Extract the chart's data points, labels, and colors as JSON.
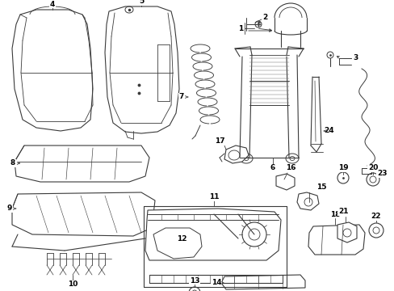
{
  "bg_color": "#ffffff",
  "line_color": "#3a3a3a",
  "label_color": "#000000",
  "fig_width": 4.89,
  "fig_height": 3.6,
  "dpi": 100
}
